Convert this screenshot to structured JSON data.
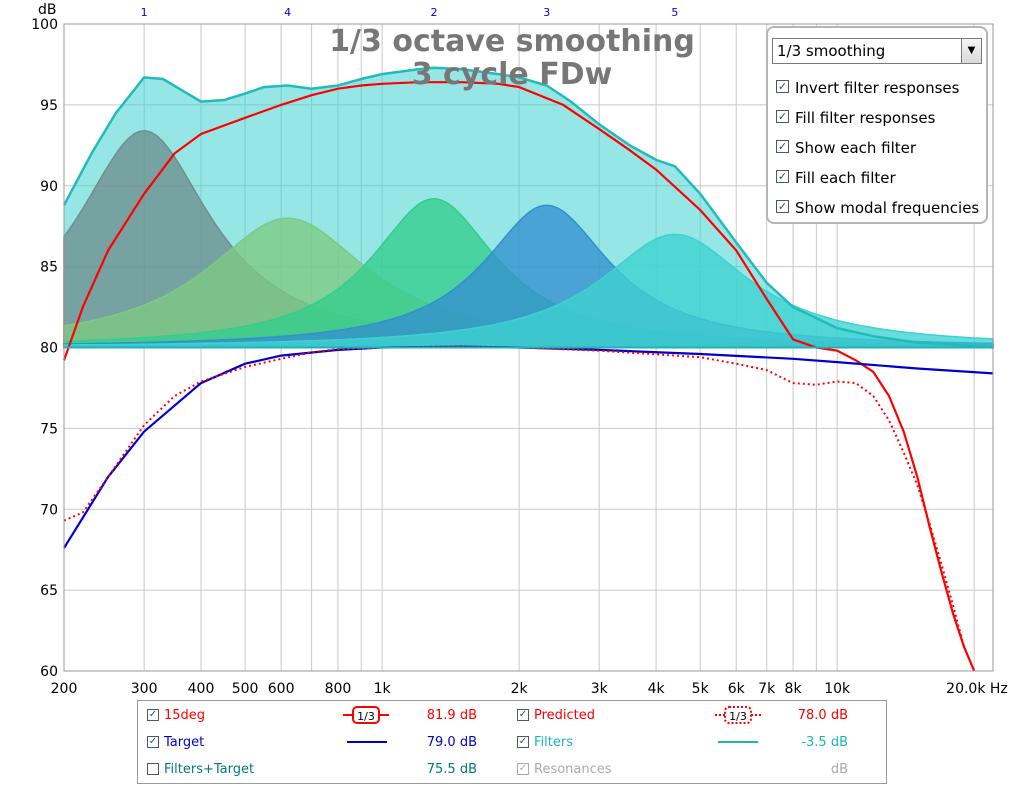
{
  "chart_data": {
    "type": "area",
    "title": "1/3 octave smoothing",
    "subtitle": "3 cycle FDw",
    "ylabel": "dB",
    "xlabel": "Hz",
    "xscale": "log",
    "xlim": [
      200,
      22000
    ],
    "ylim": [
      60,
      100
    ],
    "grid": true,
    "y_ticks": [
      "60",
      "65",
      "70",
      "75",
      "80",
      "85",
      "90",
      "95",
      "100"
    ],
    "x_ticks": [
      {
        "value": 200,
        "label": "200"
      },
      {
        "value": 300,
        "label": "300"
      },
      {
        "value": 400,
        "label": "400"
      },
      {
        "value": 500,
        "label": "500"
      },
      {
        "value": 600,
        "label": "600"
      },
      {
        "value": 800,
        "label": "800"
      },
      {
        "value": 1000,
        "label": "1k"
      },
      {
        "value": 2000,
        "label": "2k"
      },
      {
        "value": 3000,
        "label": "3k"
      },
      {
        "value": 4000,
        "label": "4k"
      },
      {
        "value": 5000,
        "label": "5k"
      },
      {
        "value": 6000,
        "label": "6k"
      },
      {
        "value": 7000,
        "label": "7k"
      },
      {
        "value": 8000,
        "label": "8k"
      },
      {
        "value": 10000,
        "label": "10k"
      },
      {
        "value": 20000,
        "label": "20.0k Hz"
      }
    ],
    "modal_frequencies": [
      {
        "label": "1",
        "freq": 300
      },
      {
        "label": "4",
        "freq": 620
      },
      {
        "label": "2",
        "freq": 1300
      },
      {
        "label": "3",
        "freq": 2300
      },
      {
        "label": "5",
        "freq": 4400
      }
    ],
    "baseline": 80,
    "filters": [
      {
        "label": "1",
        "color": "#a83d3d",
        "peak_freq": 300,
        "peak_db": 93.4,
        "width": 0.18
      },
      {
        "label": "4",
        "color": "#c8c224",
        "peak_freq": 620,
        "peak_db": 88.0,
        "width": 0.22
      },
      {
        "label": "2",
        "color": "#25c93a",
        "peak_freq": 1300,
        "peak_db": 89.2,
        "width": 0.17
      },
      {
        "label": "3",
        "color": "#2540cc",
        "peak_freq": 2300,
        "peak_db": 88.8,
        "width": 0.17
      },
      {
        "label": "5",
        "color": "#3bd2d2",
        "peak_freq": 4400,
        "peak_db": 87.0,
        "width": 0.2
      }
    ],
    "series": [
      {
        "name": "15deg",
        "color": "#ff0000",
        "style": "solid",
        "value": "81.9 dB",
        "x": [
          200,
          220,
          250,
          300,
          350,
          400,
          500,
          600,
          700,
          800,
          900,
          1000,
          1200,
          1500,
          1800,
          2000,
          2500,
          3000,
          3500,
          4000,
          5000,
          6000,
          7000,
          8000,
          9000,
          10000,
          11000,
          12000,
          13000,
          14000,
          15000,
          16000,
          17000,
          18000,
          19000,
          20000
        ],
        "y": [
          79.2,
          82.5,
          86.0,
          89.5,
          92.0,
          93.2,
          94.2,
          95.0,
          95.6,
          96.0,
          96.2,
          96.3,
          96.4,
          96.4,
          96.3,
          96.1,
          95.0,
          93.5,
          92.2,
          91.0,
          88.5,
          86.0,
          83.0,
          80.5,
          80.0,
          79.8,
          79.2,
          78.5,
          77.0,
          74.8,
          72.0,
          68.8,
          66.0,
          63.5,
          61.5,
          60.0
        ]
      },
      {
        "name": "Target",
        "color": "#0000cc",
        "style": "solid",
        "value": "79.0 dB",
        "x": [
          200,
          250,
          300,
          400,
          500,
          600,
          800,
          1000,
          1500,
          2000,
          3000,
          5000,
          8000,
          10000,
          15000,
          22000
        ],
        "y": [
          67.6,
          72.0,
          74.8,
          77.8,
          79.0,
          79.5,
          79.85,
          80.0,
          80.05,
          80.0,
          79.85,
          79.6,
          79.3,
          79.1,
          78.7,
          78.4
        ]
      },
      {
        "name": "Predicted",
        "color": "#ff0000",
        "style": "dotted",
        "value": "78.0 dB",
        "x": [
          200,
          220,
          250,
          300,
          350,
          400,
          500,
          600,
          700,
          800,
          1000,
          1500,
          2000,
          3000,
          5000,
          6000,
          7000,
          8000,
          9000,
          10000,
          11000,
          12000,
          13000,
          14000,
          15000,
          16000,
          17000,
          18000,
          19000,
          20000
        ],
        "y": [
          69.3,
          69.8,
          72.0,
          75.2,
          77.0,
          77.9,
          78.8,
          79.3,
          79.7,
          79.9,
          80.0,
          80.05,
          80.0,
          79.8,
          79.4,
          79.0,
          78.6,
          77.8,
          77.7,
          77.9,
          77.8,
          77.0,
          75.5,
          73.5,
          71.5,
          69.0,
          66.5,
          64.0,
          61.5,
          60.0
        ]
      },
      {
        "name": "Filters",
        "color": "#22bbbb",
        "style": "solid-fill",
        "value": "-3.5 dB",
        "x": [
          200,
          230,
          260,
          300,
          330,
          400,
          450,
          500,
          550,
          620,
          700,
          800,
          900,
          1000,
          1200,
          1300,
          1500,
          1800,
          2000,
          2300,
          2600,
          3000,
          3500,
          4000,
          4400,
          5000,
          6000,
          7000,
          8000,
          10000,
          12000,
          15000,
          20000,
          22000
        ],
        "y": [
          88.8,
          92.0,
          94.5,
          96.7,
          96.6,
          95.2,
          95.3,
          95.7,
          96.1,
          96.2,
          96.0,
          96.2,
          96.6,
          96.9,
          97.2,
          97.3,
          97.2,
          96.9,
          96.7,
          96.2,
          95.2,
          93.8,
          92.5,
          91.6,
          91.2,
          89.5,
          86.5,
          84.0,
          82.5,
          81.2,
          80.7,
          80.3,
          80.1,
          80.0
        ]
      }
    ]
  },
  "options": {
    "smoothing": "1/3 smoothing",
    "checkboxes": [
      {
        "label": "Invert filter responses",
        "checked": true
      },
      {
        "label": "Fill filter responses",
        "checked": true
      },
      {
        "label": "Show each filter",
        "checked": true
      },
      {
        "label": "Fill each filter",
        "checked": true
      },
      {
        "label": "Show modal frequencies",
        "checked": true
      }
    ]
  },
  "legend": {
    "items": [
      {
        "label": "15deg",
        "color": "#ff0000",
        "checked": true,
        "symbol": "1/3",
        "symbol_style": "solid",
        "value": "81.9 dB"
      },
      {
        "label": "Target",
        "color": "#0000cc",
        "checked": true,
        "symbol": "line",
        "value": "79.0 dB"
      },
      {
        "label": "Filters+Target",
        "color": "#007a7a",
        "checked": false,
        "symbol": "",
        "value": "75.5 dB"
      },
      {
        "label": "Predicted",
        "color": "#ff0000",
        "checked": true,
        "symbol": "1/3",
        "symbol_style": "dotted",
        "value": "78.0 dB"
      },
      {
        "label": "Filters",
        "color": "#1eb4b4",
        "checked": true,
        "symbol": "line",
        "value": "-3.5 dB"
      },
      {
        "label": "Resonances",
        "color": "#aaaaaa",
        "checked": true,
        "symbol": "",
        "value": "dB"
      }
    ]
  }
}
